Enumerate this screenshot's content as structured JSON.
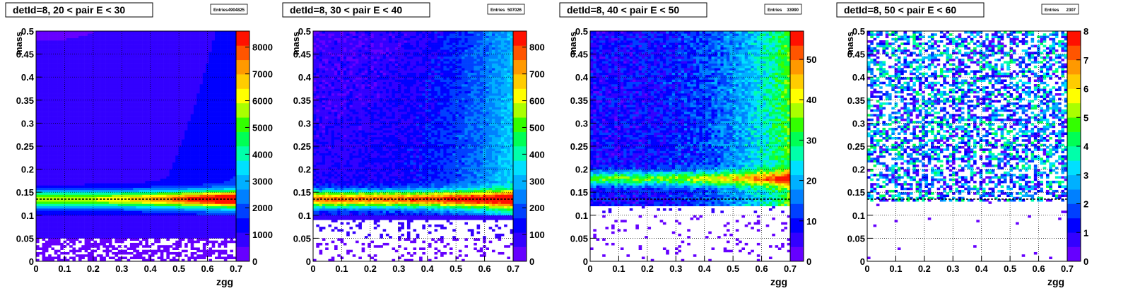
{
  "chart_data": [
    {
      "type": "heatmap",
      "title": "detId=8, 20 < pair E < 30",
      "stats": {
        "label": "Entries",
        "value": "4904825"
      },
      "xlabel": "zgg",
      "ylabel": "mass",
      "xlim": [
        0,
        0.7
      ],
      "ylim": [
        0,
        0.5
      ],
      "x_ticks": [
        "0",
        "0.1",
        "0.2",
        "0.3",
        "0.4",
        "0.5",
        "0.6",
        "0.7"
      ],
      "y_ticks": [
        "0",
        "0.05",
        "0.1",
        "0.15",
        "0.2",
        "0.25",
        "0.3",
        "0.35",
        "0.4",
        "0.45",
        "0.5"
      ],
      "z_max": 8600,
      "z_ticks": [
        "0",
        "1000",
        "2000",
        "3000",
        "4000",
        "5000",
        "6000",
        "7000",
        "8000"
      ],
      "z_tick_values": [
        0,
        1000,
        2000,
        3000,
        4000,
        5000,
        6000,
        7000,
        8000
      ],
      "reference_line_y": 0.135,
      "grid": true
    },
    {
      "type": "heatmap",
      "title": "detId=8, 30 < pair E < 40",
      "stats": {
        "label": "Entries",
        "value": "507026"
      },
      "xlabel": "",
      "ylabel": "mass",
      "xlim": [
        0,
        0.7
      ],
      "ylim": [
        0,
        0.5
      ],
      "x_ticks": [
        "0",
        "0.1",
        "0.2",
        "0.3",
        "0.4",
        "0.5",
        "0.6",
        "0.7"
      ],
      "y_ticks": [
        "0",
        "0.05",
        "0.1",
        "0.15",
        "0.2",
        "0.25",
        "0.3",
        "0.35",
        "0.4",
        "0.45",
        "0.5"
      ],
      "z_max": 860,
      "z_ticks": [
        "0",
        "100",
        "200",
        "300",
        "400",
        "500",
        "600",
        "700",
        "800"
      ],
      "z_tick_values": [
        0,
        100,
        200,
        300,
        400,
        500,
        600,
        700,
        800
      ],
      "reference_line_y": 0.135,
      "grid": true
    },
    {
      "type": "heatmap",
      "title": "detId=8, 40 < pair E < 50",
      "stats": {
        "label": "Entries",
        "value": "33990"
      },
      "xlabel": "zgg",
      "ylabel": "mass",
      "xlim": [
        0,
        0.7
      ],
      "ylim": [
        0,
        0.5
      ],
      "x_ticks": [
        "0",
        "0.1",
        "0.2",
        "0.3",
        "0.4",
        "0.5",
        "0.6",
        "0.7"
      ],
      "y_ticks": [
        "0",
        "0.05",
        "0.1",
        "0.15",
        "0.2",
        "0.25",
        "0.3",
        "0.35",
        "0.4",
        "0.45",
        "0.5"
      ],
      "z_max": 57,
      "z_ticks": [
        "0",
        "10",
        "20",
        "30",
        "40",
        "50"
      ],
      "z_tick_values": [
        0,
        10,
        20,
        30,
        40,
        50
      ],
      "reference_line_y": 0.135,
      "grid": true
    },
    {
      "type": "heatmap",
      "title": "detId=8, 50 < pair E < 60",
      "stats": {
        "label": "Entries",
        "value": "2307"
      },
      "xlabel": "zgg",
      "ylabel": "mass",
      "xlim": [
        0,
        0.7
      ],
      "ylim": [
        0,
        0.5
      ],
      "x_ticks": [
        "0",
        "0.1",
        "0.2",
        "0.3",
        "0.4",
        "0.5",
        "0.6",
        "0.7"
      ],
      "y_ticks": [
        "0",
        "0.05",
        "0.1",
        "0.15",
        "0.2",
        "0.25",
        "0.3",
        "0.35",
        "0.4",
        "0.45",
        "0.5"
      ],
      "z_max": 8,
      "z_ticks": [
        "0",
        "1",
        "2",
        "3",
        "4",
        "5",
        "6",
        "7",
        "8"
      ],
      "z_tick_values": [
        0,
        1,
        2,
        3,
        4,
        5,
        6,
        7,
        8
      ],
      "reference_line_y": 0.135,
      "grid": true
    }
  ],
  "palette": [
    "#6600ff",
    "#3300ff",
    "#0000ff",
    "#0040ff",
    "#0080ff",
    "#00b0ff",
    "#00e0ff",
    "#00ffaa",
    "#00ff55",
    "#33ff00",
    "#aaff00",
    "#ffff00",
    "#ffcc00",
    "#ff9900",
    "#ff5500",
    "#ff1100"
  ]
}
